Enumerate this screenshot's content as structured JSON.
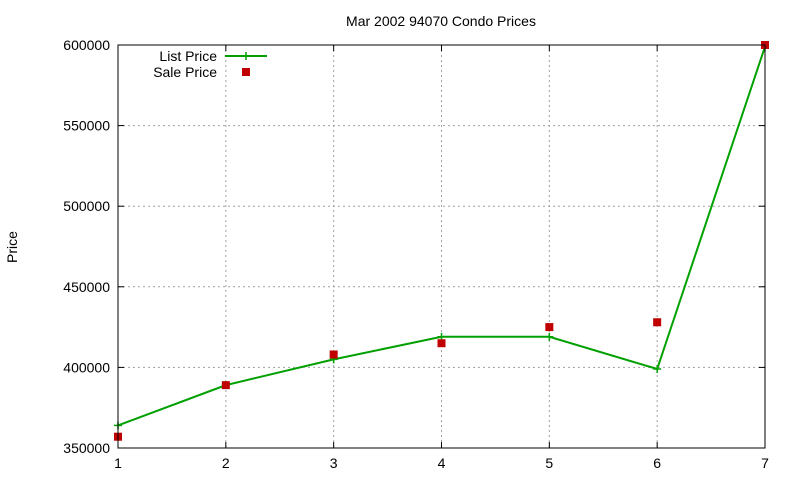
{
  "chart_data": {
    "type": "line",
    "title": "Mar 2002 94070 Condo Prices",
    "xlabel": "",
    "ylabel": "Price",
    "x": [
      1,
      2,
      3,
      4,
      5,
      6,
      7
    ],
    "xlim": [
      1,
      7
    ],
    "ylim": [
      350000,
      600000
    ],
    "xticks": [
      "1",
      "2",
      "3",
      "4",
      "5",
      "6",
      "7"
    ],
    "yticks": [
      "350000",
      "400000",
      "450000",
      "500000",
      "550000",
      "600000"
    ],
    "grid": true,
    "legend_position": "top-left",
    "series": [
      {
        "name": "List Price",
        "style": "line-with-plus-markers",
        "color": "#00a000",
        "values": [
          364000,
          389000,
          405000,
          419000,
          419000,
          399000,
          599000
        ]
      },
      {
        "name": "Sale Price",
        "style": "square-markers",
        "color": "#c00000",
        "values": [
          357000,
          389000,
          408000,
          415000,
          425000,
          428000,
          600000
        ]
      }
    ]
  }
}
